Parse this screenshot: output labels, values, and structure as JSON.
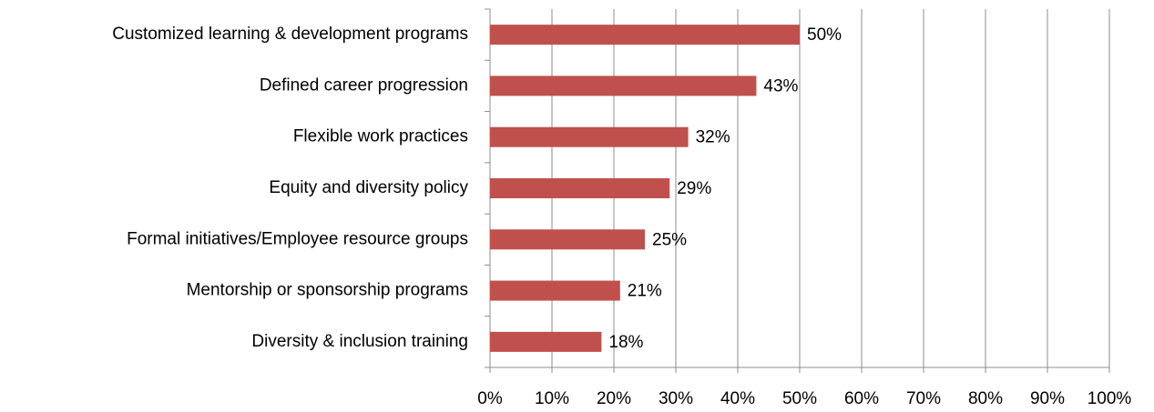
{
  "chart_data": {
    "type": "bar",
    "orientation": "horizontal",
    "categories": [
      "Customized learning & development programs",
      "Defined career progression",
      "Flexible work practices",
      "Equity and diversity policy",
      "Formal initiatives/Employee resource groups",
      "Mentorship or sponsorship programs",
      "Diversity & inclusion training"
    ],
    "values": [
      50,
      43,
      32,
      29,
      25,
      21,
      18
    ],
    "value_labels": [
      "50%",
      "43%",
      "32%",
      "29%",
      "25%",
      "21%",
      "18%"
    ],
    "color": "#c0504d",
    "xlim": [
      0,
      100
    ],
    "xticks": [
      {
        "value": 0,
        "label": "0%"
      },
      {
        "value": 10,
        "label": "10%"
      },
      {
        "value": 20,
        "label": "20%"
      },
      {
        "value": 30,
        "label": "30%"
      },
      {
        "value": 40,
        "label": "40%"
      },
      {
        "value": 50,
        "label": "50%"
      },
      {
        "value": 60,
        "label": "60%"
      },
      {
        "value": 70,
        "label": "70%"
      },
      {
        "value": 80,
        "label": "80%"
      },
      {
        "value": 90,
        "label": "90%"
      },
      {
        "value": 100,
        "label": "100%"
      }
    ],
    "grid": true
  }
}
